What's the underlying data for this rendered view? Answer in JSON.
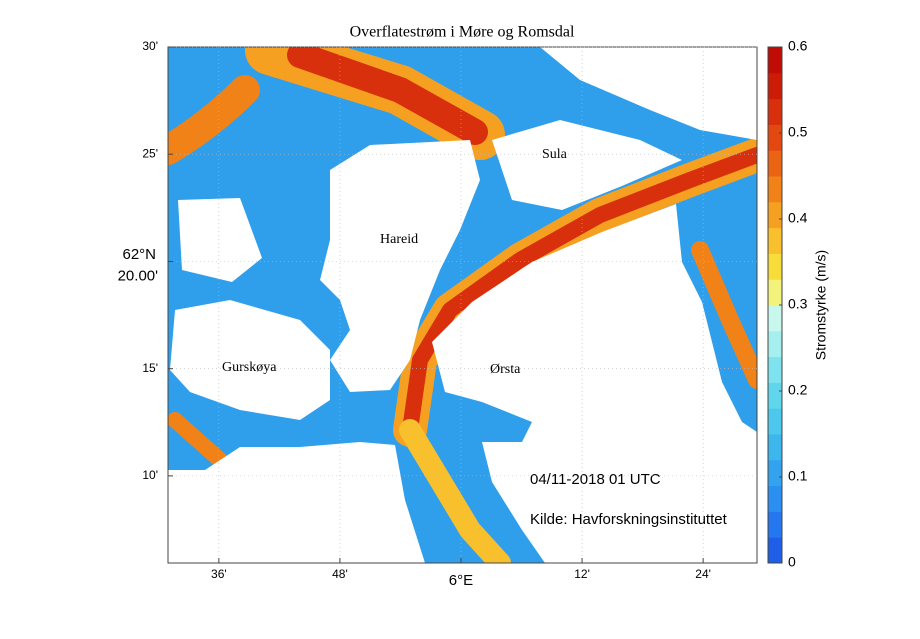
{
  "map": {
    "title": "Overflatestrøm i Møre og Romsdal",
    "xlim": [
      5.516,
      6.489
    ],
    "ylim": [
      62.099,
      62.5
    ],
    "xticks": [
      {
        "value": 5.6,
        "label": "36'"
      },
      {
        "value": 5.8,
        "label": "48'"
      },
      {
        "value": 6.0,
        "label": "6°E"
      },
      {
        "value": 6.2,
        "label": "12'"
      },
      {
        "value": 6.4,
        "label": "24'"
      }
    ],
    "yticks": [
      {
        "value": 62.5,
        "label": "30'"
      },
      {
        "value": 62.4167,
        "label": "25'"
      },
      {
        "value": 62.3333,
        "label": "20.00'"
      },
      {
        "value": 62.25,
        "label": "15'"
      },
      {
        "value": 62.1667,
        "label": "10'"
      }
    ],
    "ylabel": "62°N",
    "places": [
      "Sula",
      "Hareid",
      "Gurskøya",
      "Ørsta"
    ],
    "timestamp": "04/11-2018 01 UTC",
    "source": "Kilde: Havforskningsinstituttet",
    "colorbar": {
      "label": "Stromstyrke (m/s)",
      "lim": [
        0,
        0.6
      ],
      "ticks": [
        0,
        0.1,
        0.2,
        0.3,
        0.4,
        0.5,
        0.6
      ],
      "colors": [
        "#1f5fe8",
        "#2477ee",
        "#2a8ff0",
        "#33a3f0",
        "#3db6ee",
        "#4cc8ec",
        "#5fd6ec",
        "#7ee3ee",
        "#a6efef",
        "#c8f7ee",
        "#f3f27a",
        "#f8dc3a",
        "#f8c02c",
        "#f5a020",
        "#f08218",
        "#ea6414",
        "#e24810",
        "#d8300c",
        "#cc1c08",
        "#c00c04"
      ]
    }
  }
}
